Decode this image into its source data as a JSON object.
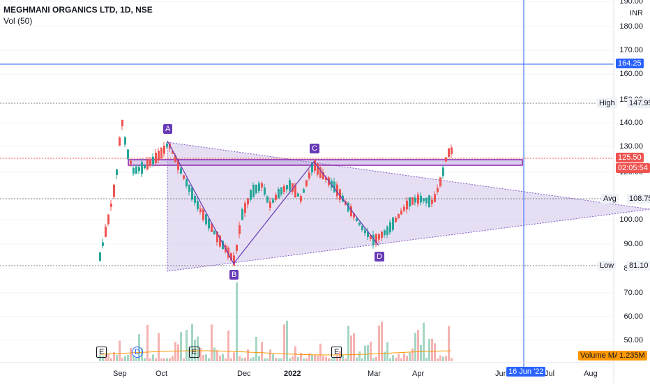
{
  "header": {
    "symbol_title": "MEGHMANI ORGANICS LTD, 1D, NSE",
    "volume_indicator": "Vol (50)"
  },
  "price_axis": {
    "currency": "INR",
    "ticks": [
      "190.00",
      "180.00",
      "170.00",
      "160.00",
      "150.00",
      "140.00",
      "130.00",
      "120.00",
      "100.00",
      "90.00",
      "80.00",
      "70.00",
      "60.00",
      "50.00"
    ]
  },
  "markers": {
    "hline_price": "164.25",
    "high_label": "High",
    "high_value": "147.95",
    "avg_label": "Avg",
    "avg_value": "108.75",
    "low_label": "Low",
    "low_value": "81.10",
    "last_price": "125.50",
    "countdown": "02:05:54",
    "volume_ma_label": "Volume MA",
    "volume_ma_value": "1.235M"
  },
  "pattern_points": [
    "A",
    "B",
    "C",
    "D"
  ],
  "events": [
    "E",
    "D",
    "E",
    "E"
  ],
  "time_axis": {
    "labels": [
      "Sep",
      "Oct",
      "Dec",
      "2022",
      "Mar",
      "Apr",
      "Jun",
      "Jul",
      "Aug"
    ],
    "crosshair_date": "16 Jun '22"
  },
  "colors": {
    "up": "#26a69a",
    "down": "#ef5350",
    "blue_line": "#2962ff",
    "triangle_fill": "#d1c4e9",
    "pattern_purple": "#673ab7",
    "last_price_bg": "#ef5350",
    "volume_ma": "#ff9800"
  }
}
